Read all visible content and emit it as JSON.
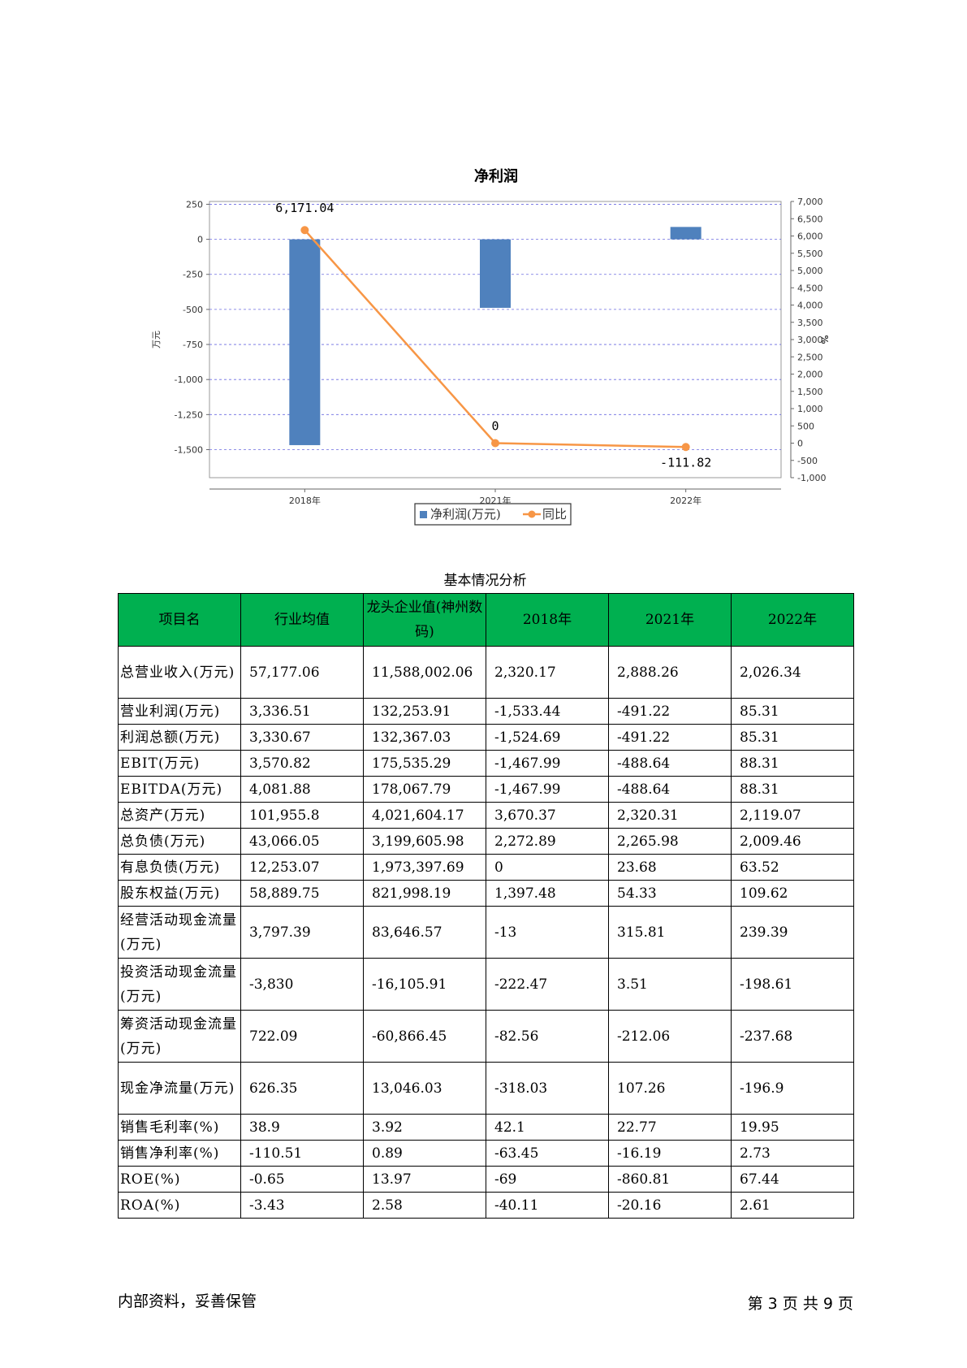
{
  "chart_data": {
    "type": "bar",
    "title": "净利润",
    "categories": [
      "2018年",
      "2021年",
      "2022年"
    ],
    "series": [
      {
        "name": "净利润(万元)",
        "type": "bar",
        "axis": "left",
        "values": [
          -1467.99,
          -488.64,
          88.31
        ],
        "color": "#4f81bd"
      },
      {
        "name": "同比",
        "type": "line",
        "axis": "right",
        "values": [
          6171.04,
          0,
          -111.82
        ],
        "labels": [
          "6,171.04",
          "0",
          "-111.82"
        ],
        "color": "#f79646"
      }
    ],
    "ylabel": "万元",
    "y2label": "%",
    "ylim": [
      -1700,
      270
    ],
    "y2lim": [
      -1000,
      7000
    ],
    "yticks": [
      {
        "v": 250,
        "t": "250"
      },
      {
        "v": 0,
        "t": "0"
      },
      {
        "v": -250,
        "t": "-250"
      },
      {
        "v": -500,
        "t": "-500"
      },
      {
        "v": -750,
        "t": "-750"
      },
      {
        "v": -1000,
        "t": "-1,000"
      },
      {
        "v": -1250,
        "t": "-1,250"
      },
      {
        "v": -1500,
        "t": "-1,500"
      }
    ],
    "y2ticks": [
      {
        "v": 7000,
        "t": "7,000"
      },
      {
        "v": 6500,
        "t": "6,500"
      },
      {
        "v": 6000,
        "t": "6,000"
      },
      {
        "v": 5500,
        "t": "5,500"
      },
      {
        "v": 5000,
        "t": "5,000"
      },
      {
        "v": 4500,
        "t": "4,500"
      },
      {
        "v": 4000,
        "t": "4,000"
      },
      {
        "v": 3500,
        "t": "3,500"
      },
      {
        "v": 3000,
        "t": "3,000"
      },
      {
        "v": 2500,
        "t": "2,500"
      },
      {
        "v": 2000,
        "t": "2,000"
      },
      {
        "v": 1500,
        "t": "1,500"
      },
      {
        "v": 1000,
        "t": "1,000"
      },
      {
        "v": 500,
        "t": "500"
      },
      {
        "v": 0,
        "t": "0"
      },
      {
        "v": -500,
        "t": "-500"
      },
      {
        "v": -1000,
        "t": "-1,000"
      }
    ],
    "grid": true,
    "legend_position": "bottom"
  },
  "table": {
    "caption": "基本情况分析",
    "headers": [
      "项目名",
      "行业均值",
      "龙头企业值(神州数码)",
      "2018年",
      "2021年",
      "2022年"
    ],
    "rows": [
      {
        "name": "总营业收入(万元)",
        "values": [
          "57,177.06",
          "11,588,002.06",
          "2,320.17",
          "2,888.26",
          "2,026.34"
        ],
        "tall": true
      },
      {
        "name": "营业利润(万元)",
        "values": [
          "3,336.51",
          "132,253.91",
          "-1,533.44",
          "-491.22",
          "85.31"
        ],
        "tall": false
      },
      {
        "name": "利润总额(万元)",
        "values": [
          "3,330.67",
          "132,367.03",
          "-1,524.69",
          "-491.22",
          "85.31"
        ],
        "tall": false
      },
      {
        "name": "EBIT(万元)",
        "values": [
          "3,570.82",
          "175,535.29",
          "-1,467.99",
          "-488.64",
          "88.31"
        ],
        "tall": false
      },
      {
        "name": "EBITDA(万元)",
        "values": [
          "4,081.88",
          "178,067.79",
          "-1,467.99",
          "-488.64",
          "88.31"
        ],
        "tall": false
      },
      {
        "name": "总资产(万元)",
        "values": [
          "101,955.8",
          "4,021,604.17",
          "3,670.37",
          "2,320.31",
          "2,119.07"
        ],
        "tall": false
      },
      {
        "name": "总负债(万元)",
        "values": [
          "43,066.05",
          "3,199,605.98",
          "2,272.89",
          "2,265.98",
          "2,009.46"
        ],
        "tall": false
      },
      {
        "name": "有息负债(万元)",
        "values": [
          "12,253.07",
          "1,973,397.69",
          "0",
          "23.68",
          "63.52"
        ],
        "tall": false
      },
      {
        "name": "股东权益(万元)",
        "values": [
          "58,889.75",
          "821,998.19",
          "1,397.48",
          "54.33",
          "109.62"
        ],
        "tall": false
      },
      {
        "name": "经营活动现金流量(万元)",
        "values": [
          "3,797.39",
          "83,646.57",
          "-13",
          "315.81",
          "239.39"
        ],
        "tall": true
      },
      {
        "name": "投资活动现金流量(万元)",
        "values": [
          "-3,830",
          "-16,105.91",
          "-222.47",
          "3.51",
          "-198.61"
        ],
        "tall": true
      },
      {
        "name": "筹资活动现金流量(万元)",
        "values": [
          "722.09",
          "-60,866.45",
          "-82.56",
          "-212.06",
          "-237.68"
        ],
        "tall": true
      },
      {
        "name": "现金净流量(万元)",
        "values": [
          "626.35",
          "13,046.03",
          "-318.03",
          "107.26",
          "-196.9"
        ],
        "tall": true
      },
      {
        "name": "销售毛利率(%)",
        "values": [
          "38.9",
          "3.92",
          "42.1",
          "22.77",
          "19.95"
        ],
        "tall": false
      },
      {
        "name": "销售净利率(%)",
        "values": [
          "-110.51",
          "0.89",
          "-63.45",
          "-16.19",
          "2.73"
        ],
        "tall": false
      },
      {
        "name": "ROE(%)",
        "values": [
          "-0.65",
          "13.97",
          "-69",
          "-860.81",
          "67.44"
        ],
        "tall": false
      },
      {
        "name": "ROA(%)",
        "values": [
          "-3.43",
          "2.58",
          "-40.11",
          "-20.16",
          "2.61"
        ],
        "tall": false
      }
    ]
  },
  "footer": {
    "left": "内部资料，妥善保管",
    "right": "第 3 页  共 9 页"
  }
}
